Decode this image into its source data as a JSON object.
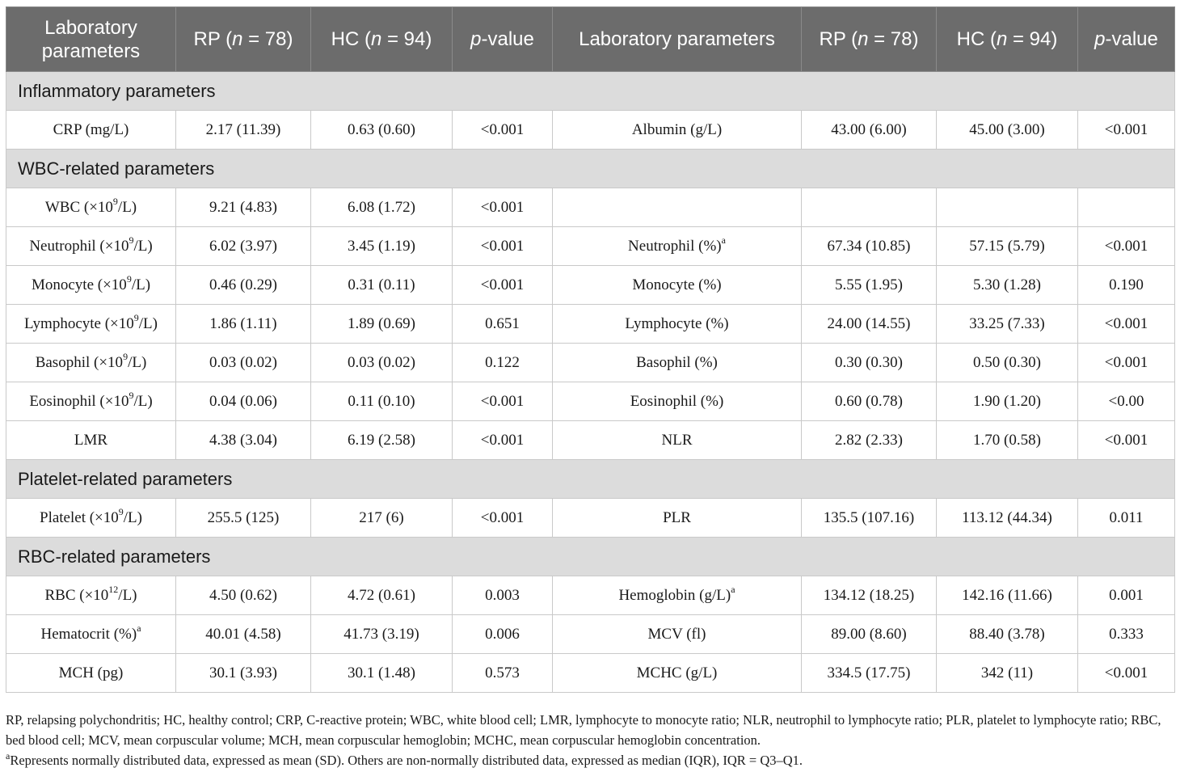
{
  "header": {
    "col1": "Laboratory parameters",
    "col2_pre": "RP (",
    "col2_n": "n",
    "col2_post": " = 78)",
    "col3_pre": "HC (",
    "col3_n": "n",
    "col3_post": " = 94)",
    "col4_p": "p",
    "col4_post": "-value",
    "col5": "Laboratory parameters",
    "col6_pre": "RP (",
    "col6_n": "n",
    "col6_post": " = 78)",
    "col7_pre": "HC (",
    "col7_n": "n",
    "col7_post": " = 94)",
    "col8_p": "p",
    "col8_post": "-value"
  },
  "sections": {
    "inflammatory": "Inflammatory parameters",
    "wbc": "WBC-related parameters",
    "platelet": "Platelet-related parameters",
    "rbc": "RBC-related parameters"
  },
  "rows": {
    "crp": {
      "l_name": "CRP (mg/L)",
      "l_rp": "2.17 (11.39)",
      "l_hc": "0.63 (0.60)",
      "l_p": "<0.001",
      "r_name": "Albumin (g/L)",
      "r_rp": "43.00 (6.00)",
      "r_hc": "45.00 (3.00)",
      "r_p": "<0.001"
    },
    "wbc": {
      "l_name_pre": "WBC (×10",
      "l_name_sup": "9",
      "l_name_post": "/L)",
      "l_rp": "9.21 (4.83)",
      "l_hc": "6.08 (1.72)",
      "l_p": "<0.001"
    },
    "neutrophil": {
      "l_name_pre": "Neutrophil (×10",
      "l_name_sup": "9",
      "l_name_post": "/L)",
      "l_rp": "6.02 (3.97)",
      "l_hc": "3.45 (1.19)",
      "l_p": "<0.001",
      "r_name": "Neutrophil (%)",
      "r_sup": "a",
      "r_rp": "67.34 (10.85)",
      "r_hc": "57.15 (5.79)",
      "r_p": "<0.001"
    },
    "monocyte": {
      "l_name_pre": "Monocyte (×10",
      "l_name_sup": "9",
      "l_name_post": "/L)",
      "l_rp": "0.46 (0.29)",
      "l_hc": "0.31 (0.11)",
      "l_p": "<0.001",
      "r_name": "Monocyte (%)",
      "r_rp": "5.55 (1.95)",
      "r_hc": "5.30 (1.28)",
      "r_p": "0.190"
    },
    "lymphocyte": {
      "l_name_pre": "Lymphocyte (×10",
      "l_name_sup": "9",
      "l_name_post": "/L)",
      "l_rp": "1.86 (1.11)",
      "l_hc": "1.89 (0.69)",
      "l_p": "0.651",
      "r_name": "Lymphocyte (%)",
      "r_rp": "24.00 (14.55)",
      "r_hc": "33.25 (7.33)",
      "r_p": "<0.001"
    },
    "basophil": {
      "l_name_pre": "Basophil (×10",
      "l_name_sup": "9",
      "l_name_post": "/L)",
      "l_rp": "0.03 (0.02)",
      "l_hc": "0.03 (0.02)",
      "l_p": "0.122",
      "r_name": "Basophil (%)",
      "r_rp": "0.30 (0.30)",
      "r_hc": "0.50 (0.30)",
      "r_p": "<0.001"
    },
    "eosinophil": {
      "l_name_pre": "Eosinophil (×10",
      "l_name_sup": "9",
      "l_name_post": "/L)",
      "l_rp": "0.04 (0.06)",
      "l_hc": "0.11 (0.10)",
      "l_p": "<0.001",
      "r_name": "Eosinophil (%)",
      "r_rp": "0.60 (0.78)",
      "r_hc": "1.90 (1.20)",
      "r_p": "<0.00"
    },
    "lmr": {
      "l_name": "LMR",
      "l_rp": "4.38 (3.04)",
      "l_hc": "6.19 (2.58)",
      "l_p": "<0.001",
      "r_name": "NLR",
      "r_rp": "2.82 (2.33)",
      "r_hc": "1.70 (0.58)",
      "r_p": "<0.001"
    },
    "platelet": {
      "l_name_pre": "Platelet (×10",
      "l_name_sup": "9",
      "l_name_post": "/L)",
      "l_rp": "255.5 (125)",
      "l_hc": "217 (6)",
      "l_p": "<0.001",
      "r_name": "PLR",
      "r_rp": "135.5 (107.16)",
      "r_hc": "113.12 (44.34)",
      "r_p": "0.011"
    },
    "rbc": {
      "l_name_pre": "RBC (×10",
      "l_name_sup": "12",
      "l_name_post": "/L)",
      "l_rp": "4.50 (0.62)",
      "l_hc": "4.72 (0.61)",
      "l_p": "0.003",
      "r_name": "Hemoglobin (g/L)",
      "r_sup": "a",
      "r_rp": "134.12 (18.25)",
      "r_hc": "142.16 (11.66)",
      "r_p": "0.001"
    },
    "hematocrit": {
      "l_name": "Hematocrit (%)",
      "l_sup": "a",
      "l_rp": "40.01 (4.58)",
      "l_hc": "41.73 (3.19)",
      "l_p": "0.006",
      "r_name": "MCV (fl)",
      "r_rp": "89.00 (8.60)",
      "r_hc": "88.40 (3.78)",
      "r_p": "0.333"
    },
    "mch": {
      "l_name": "MCH (pg)",
      "l_rp": "30.1 (3.93)",
      "l_hc": "30.1 (1.48)",
      "l_p": "0.573",
      "r_name": "MCHC (g/L)",
      "r_rp": "334.5 (17.75)",
      "r_hc": "342 (11)",
      "r_p": "<0.001"
    }
  },
  "footnotes": {
    "abbreviations": "RP, relapsing polychondritis; HC, healthy control; CRP, C-reactive protein; WBC, white blood cell; LMR, lymphocyte to monocyte ratio; NLR, neutrophil to lymphocyte ratio; PLR, platelet to lymphocyte ratio; RBC, bed blood cell; MCV, mean corpuscular volume; MCH, mean corpuscular hemoglobin; MCHC, mean corpuscular hemoglobin concentration.",
    "note_sup": "a",
    "note": "Represents normally distributed data, expressed as mean (SD). Others are non-normally distributed data, expressed as median (IQR), IQR = Q3–Q1."
  },
  "colors": {
    "header_bg": "#6c6c6c",
    "section_bg": "#dcdcdc",
    "border": "#c9c9c9"
  }
}
